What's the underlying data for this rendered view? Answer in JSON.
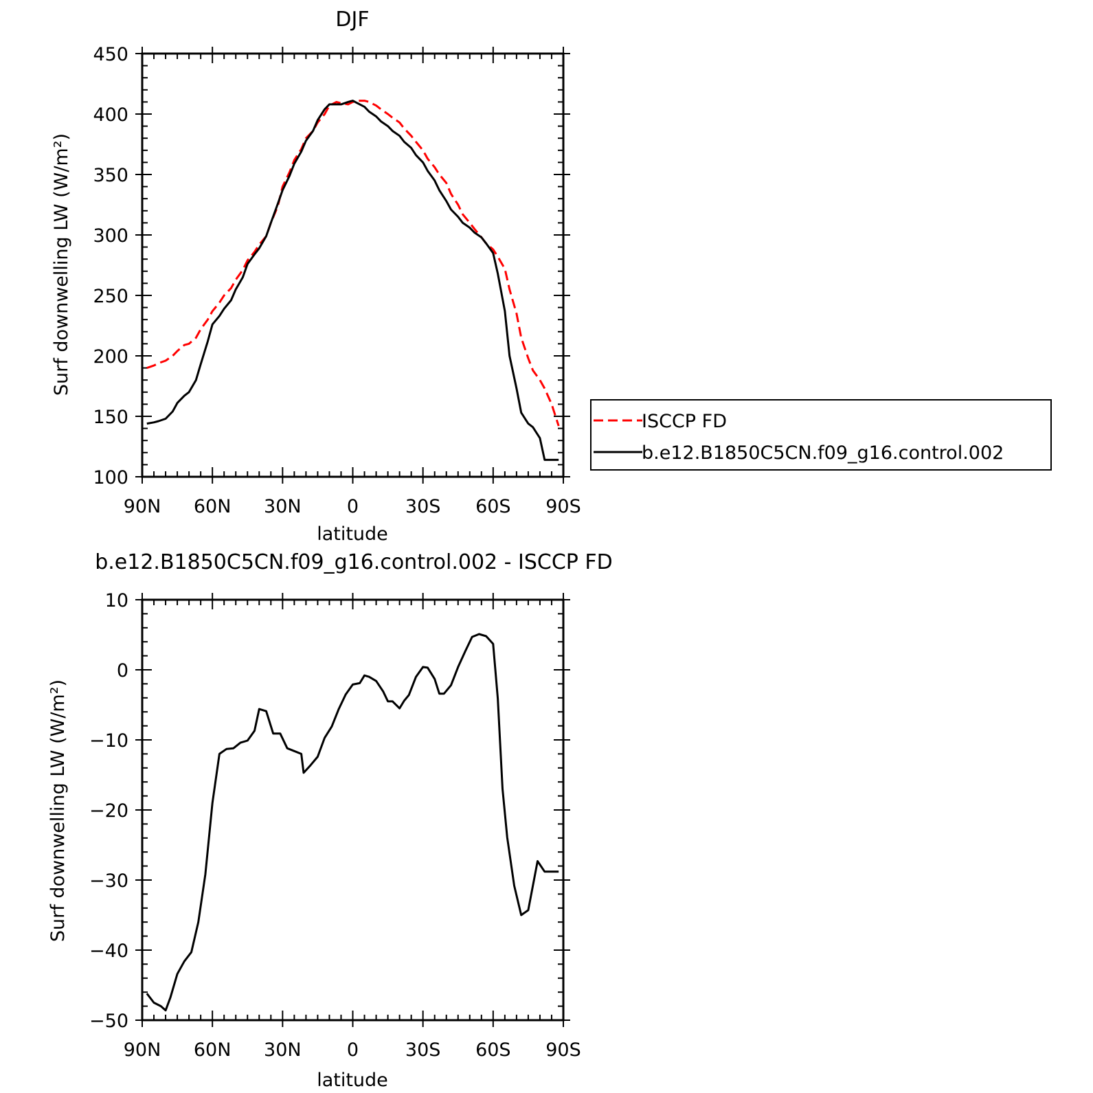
{
  "chart_data": [
    {
      "type": "line",
      "title": "DJF",
      "xlabel": "latitude",
      "ylabel": "Surf downwelling LW (W/m²)",
      "xlim": [
        90,
        -90
      ],
      "ylim": [
        100,
        450
      ],
      "xticks": [
        90,
        60,
        30,
        0,
        -30,
        -60,
        -90
      ],
      "xtick_labels": [
        "90N",
        "60N",
        "30N",
        "0",
        "30S",
        "60S",
        "90S"
      ],
      "yticks": [
        100,
        150,
        200,
        250,
        300,
        350,
        400,
        450
      ],
      "ytick_labels": [
        "100",
        "150",
        "200",
        "250",
        "300",
        "350",
        "400",
        "450"
      ],
      "legend_position": "right",
      "series": [
        {
          "name": "ISCCP FD",
          "color": "#ff0000",
          "dash": "dashed",
          "x": [
            88,
            85,
            83,
            80,
            77,
            75,
            72,
            70,
            67,
            65,
            62,
            60,
            57,
            55,
            52,
            50,
            47,
            45,
            42,
            40,
            37,
            35,
            32,
            30,
            27,
            25,
            22,
            20,
            17,
            15,
            12,
            10,
            7,
            5,
            2,
            0,
            -2,
            -5,
            -7,
            -10,
            -12,
            -15,
            -17,
            -20,
            -22,
            -25,
            -27,
            -30,
            -32,
            -35,
            -37,
            -40,
            -42,
            -45,
            -47,
            -50,
            -52,
            -55,
            -57,
            -60,
            -62,
            -65,
            -67,
            -70,
            -72,
            -75,
            -77,
            -80,
            -82,
            -85,
            -88
          ],
          "y": [
            190,
            192,
            194,
            196,
            200,
            204,
            209,
            210,
            215,
            222,
            230,
            237,
            244,
            250,
            256,
            263,
            271,
            279,
            286,
            292,
            299,
            310,
            324,
            340,
            352,
            362,
            371,
            380,
            386,
            393,
            400,
            407,
            410,
            409,
            408,
            410,
            411,
            411,
            410,
            407,
            404,
            400,
            397,
            393,
            388,
            382,
            377,
            370,
            363,
            356,
            350,
            343,
            334,
            325,
            317,
            310,
            305,
            298,
            293,
            288,
            282,
            272,
            255,
            235,
            215,
            198,
            188,
            180,
            173,
            160,
            142
          ]
        },
        {
          "name": "b.e12.B1850C5CN.f09_g16.control.002",
          "color": "#000000",
          "dash": "solid",
          "x": [
            88,
            85,
            83,
            80,
            77,
            75,
            72,
            70,
            67,
            65,
            62,
            60,
            57,
            55,
            52,
            50,
            47,
            45,
            42,
            40,
            37,
            35,
            32,
            30,
            27,
            25,
            22,
            20,
            17,
            15,
            12,
            10,
            7,
            5,
            2,
            0,
            -2,
            -5,
            -7,
            -10,
            -12,
            -15,
            -17,
            -20,
            -22,
            -25,
            -27,
            -30,
            -32,
            -35,
            -37,
            -40,
            -42,
            -45,
            -47,
            -50,
            -52,
            -55,
            -57,
            -60,
            -62,
            -65,
            -67,
            -70,
            -72,
            -75,
            -77,
            -80,
            -82,
            -85,
            -88
          ],
          "y": [
            144,
            145,
            146,
            148,
            154,
            161,
            167,
            170,
            180,
            193,
            212,
            226,
            233,
            239,
            246,
            255,
            265,
            276,
            284,
            289,
            299,
            310,
            326,
            337,
            349,
            359,
            369,
            378,
            386,
            395,
            404,
            408,
            408,
            408,
            410,
            411,
            409,
            406,
            402,
            398,
            394,
            390,
            386,
            382,
            377,
            372,
            366,
            360,
            353,
            345,
            337,
            328,
            321,
            315,
            310,
            306,
            302,
            298,
            293,
            285,
            268,
            237,
            200,
            173,
            153,
            144,
            141,
            132,
            114,
            114,
            114
          ]
        }
      ]
    },
    {
      "type": "line",
      "title": "b.e12.B1850C5CN.f09_g16.control.002 - ISCCP FD",
      "xlabel": "latitude",
      "ylabel": "Surf downwelling LW (W/m²)",
      "xlim": [
        90,
        -90
      ],
      "ylim": [
        -50,
        10
      ],
      "xticks": [
        90,
        60,
        30,
        0,
        -30,
        -60,
        -90
      ],
      "xtick_labels": [
        "90N",
        "60N",
        "30N",
        "0",
        "30S",
        "60S",
        "90S"
      ],
      "yticks": [
        -50,
        -40,
        -30,
        -20,
        -10,
        0,
        10
      ],
      "ytick_labels": [
        "−50",
        "−40",
        "−30",
        "−20",
        "−10",
        "0",
        "10"
      ],
      "series": [
        {
          "color": "#000000",
          "dash": "solid",
          "x": [
            88,
            85,
            82,
            80,
            78,
            75,
            72,
            69,
            66,
            63,
            60,
            57,
            54,
            51,
            48,
            45,
            42,
            40,
            37,
            34,
            31,
            28,
            25,
            22,
            21,
            18,
            15,
            12,
            9,
            6,
            3,
            0,
            -3,
            -5,
            -7,
            -10,
            -13,
            -15,
            -17,
            -20,
            -22,
            -24,
            -27,
            -30,
            -32,
            -35,
            -37,
            -39,
            -42,
            -45,
            -48,
            -51,
            -54,
            -57,
            -60,
            -62,
            -64,
            -66,
            -69,
            -72,
            -75,
            -77,
            -79,
            -82,
            -85,
            -88
          ],
          "y": [
            -46.2,
            -47.5,
            -48,
            -48.6,
            -46.8,
            -43.4,
            -41.6,
            -40.3,
            -36,
            -29.2,
            -19,
            -12,
            -11.3,
            -11.2,
            -10.4,
            -10.1,
            -8.7,
            -5.6,
            -5.9,
            -9.1,
            -9.1,
            -11.2,
            -11.6,
            -12,
            -14.7,
            -13.6,
            -12.4,
            -9.7,
            -8.1,
            -5.6,
            -3.5,
            -2.1,
            -1.9,
            -0.8,
            -1,
            -1.6,
            -3.1,
            -4.5,
            -4.5,
            -5.5,
            -4.4,
            -3.6,
            -1,
            0.4,
            0.3,
            -1.3,
            -3.4,
            -3.4,
            -2.2,
            0.4,
            2.6,
            4.7,
            5.1,
            4.8,
            3.7,
            -4.1,
            -17,
            -23.9,
            -30.8,
            -35,
            -34.3,
            -30.8,
            -27.3,
            -28.8,
            -28.8,
            -28.8
          ]
        }
      ]
    }
  ]
}
